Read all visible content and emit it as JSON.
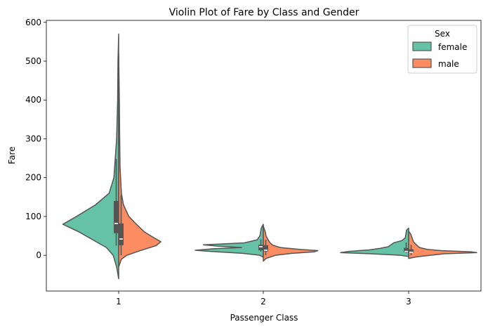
{
  "chart_data": {
    "type": "violin",
    "title": "Violin Plot of Fare by Class and Gender",
    "xlabel": "Passenger Class",
    "ylabel": "Fare",
    "categories": [
      "1",
      "2",
      "3"
    ],
    "ylim": [
      -92,
      605
    ],
    "yticks": [
      0,
      100,
      200,
      300,
      400,
      500,
      600
    ],
    "grid": false,
    "split": true,
    "legend": {
      "title": "Sex",
      "placement": "top-right",
      "entries": [
        {
          "name": "female",
          "color": "#66c2a5"
        },
        {
          "name": "male",
          "color": "#fc8d62"
        }
      ]
    },
    "outline_color": "#555555",
    "series": [
      {
        "name": "female",
        "color": "#66c2a5",
        "violins": [
          {
            "category": "1",
            "y_range": [
              -60,
              570
            ],
            "quartiles": {
              "q1": 57,
              "median": 82,
              "q3": 140
            },
            "whiskers": [
              25,
              248
            ],
            "density": [
              [
                -60,
                0
              ],
              [
                -30,
                0.03
              ],
              [
                0,
                0.08
              ],
              [
                20,
                0.18
              ],
              [
                40,
                0.38
              ],
              [
                60,
                0.58
              ],
              [
                80,
                0.82
              ],
              [
                100,
                0.62
              ],
              [
                130,
                0.34
              ],
              [
                160,
                0.14
              ],
              [
                200,
                0.07
              ],
              [
                250,
                0.05
              ],
              [
                300,
                0.03
              ],
              [
                400,
                0.015
              ],
              [
                500,
                0.01
              ],
              [
                570,
                0
              ]
            ]
          },
          {
            "category": "2",
            "y_range": [
              -5,
              80
            ],
            "quartiles": {
              "q1": 13,
              "median": 22,
              "q3": 27
            },
            "whiskers": [
              10,
              41
            ],
            "density": [
              [
                -5,
                0
              ],
              [
                0,
                0.05
              ],
              [
                5,
                0.3
              ],
              [
                10,
                0.78
              ],
              [
                13,
                1.0
              ],
              [
                17,
                0.72
              ],
              [
                20,
                0.32
              ],
              [
                24,
                0.7
              ],
              [
                27,
                0.88
              ],
              [
                32,
                0.28
              ],
              [
                40,
                0.09
              ],
              [
                50,
                0.05
              ],
              [
                60,
                0.04
              ],
              [
                70,
                0.03
              ],
              [
                80,
                0
              ]
            ]
          },
          {
            "category": "3",
            "y_range": [
              -3,
              70
            ],
            "quartiles": {
              "q1": 7.8,
              "median": 10,
              "q3": 19
            },
            "whiskers": [
              6.7,
              33
            ],
            "density": [
              [
                -3,
                0
              ],
              [
                0,
                0.12
              ],
              [
                4,
                0.55
              ],
              [
                7,
                1.0
              ],
              [
                10,
                0.88
              ],
              [
                14,
                0.58
              ],
              [
                18,
                0.42
              ],
              [
                22,
                0.3
              ],
              [
                27,
                0.26
              ],
              [
                32,
                0.22
              ],
              [
                38,
                0.1
              ],
              [
                45,
                0.05
              ],
              [
                55,
                0.04
              ],
              [
                65,
                0.03
              ],
              [
                70,
                0
              ]
            ]
          }
        ]
      },
      {
        "name": "male",
        "color": "#fc8d62",
        "violins": [
          {
            "category": "1",
            "y_range": [
              -30,
              520
            ],
            "quartiles": {
              "q1": 26,
              "median": 42,
              "q3": 82
            },
            "whiskers": [
              0,
              155
            ],
            "density": [
              [
                -30,
                0
              ],
              [
                -10,
                0.04
              ],
              [
                0,
                0.12
              ],
              [
                10,
                0.28
              ],
              [
                25,
                0.55
              ],
              [
                35,
                0.62
              ],
              [
                45,
                0.52
              ],
              [
                60,
                0.38
              ],
              [
                80,
                0.26
              ],
              [
                100,
                0.15
              ],
              [
                130,
                0.07
              ],
              [
                160,
                0.04
              ],
              [
                230,
                0.02
              ],
              [
                300,
                0.015
              ],
              [
                400,
                0.01
              ],
              [
                520,
                0
              ]
            ]
          },
          {
            "category": "2",
            "y_range": [
              -15,
              75
            ],
            "quartiles": {
              "q1": 10,
              "median": 13,
              "q3": 26
            },
            "whiskers": [
              0,
              40
            ],
            "density": [
              [
                -15,
                0
              ],
              [
                -8,
                0.04
              ],
              [
                0,
                0.18
              ],
              [
                5,
                0.42
              ],
              [
                9,
                0.75
              ],
              [
                12,
                0.8
              ],
              [
                15,
                0.55
              ],
              [
                20,
                0.25
              ],
              [
                26,
                0.14
              ],
              [
                32,
                0.1
              ],
              [
                40,
                0.07
              ],
              [
                50,
                0.04
              ],
              [
                60,
                0.03
              ],
              [
                75,
                0
              ]
            ]
          },
          {
            "category": "3",
            "y_range": [
              -8,
              62
            ],
            "quartiles": {
              "q1": 7.8,
              "median": 8,
              "q3": 15.5
            },
            "whiskers": [
              0,
              27
            ],
            "density": [
              [
                -8,
                0
              ],
              [
                -4,
                0.12
              ],
              [
                0,
                0.32
              ],
              [
                4,
                0.52
              ],
              [
                7,
                1.0
              ],
              [
                9,
                0.92
              ],
              [
                12,
                0.48
              ],
              [
                15,
                0.28
              ],
              [
                20,
                0.16
              ],
              [
                26,
                0.12
              ],
              [
                35,
                0.07
              ],
              [
                45,
                0.05
              ],
              [
                55,
                0.03
              ],
              [
                62,
                0
              ]
            ]
          }
        ]
      }
    ]
  }
}
